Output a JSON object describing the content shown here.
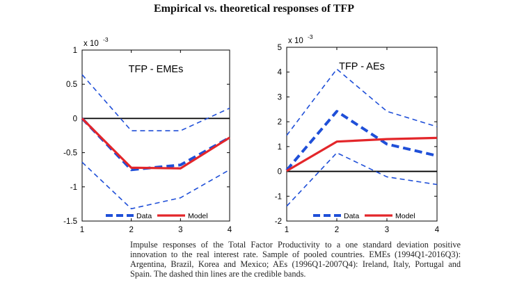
{
  "figure_title": "Empirical vs. theoretical responses of TFP",
  "caption": "Impulse responses of the Total Factor Productivity to a one standard deviation positive innovation to the real interest rate. Sample of pooled countries. EMEs (1994Q1-2016Q3): Argentina, Brazil, Korea and Mexico; AEs (1996Q1-2007Q4): Ireland, Italy, Portugal and Spain. The dashed thin lines are the credible bands.",
  "colors": {
    "data": "#1f4fd8",
    "model": "#e3262a",
    "zero": "#000000"
  },
  "chart_data": [
    {
      "type": "line",
      "title": "TFP - EMEs",
      "multiplier_label": "x 10",
      "multiplier_exp": "-3",
      "x": [
        1,
        2,
        3,
        4
      ],
      "xlim": [
        1,
        4
      ],
      "ylim": [
        -1.5,
        1
      ],
      "xticks": [
        "1",
        "2",
        "3",
        "4"
      ],
      "yticks": [
        {
          "v": 1,
          "label": "1"
        },
        {
          "v": 0.5,
          "label": "0.5"
        },
        {
          "v": 0,
          "label": "0"
        },
        {
          "v": -0.5,
          "label": "-0.5"
        },
        {
          "v": -1,
          "label": "-1"
        },
        {
          "v": -1.5,
          "label": "-1.5"
        }
      ],
      "series": [
        {
          "name": "Data",
          "style": "data",
          "values": [
            0,
            -0.75,
            -0.68,
            -0.28
          ]
        },
        {
          "name": "Model",
          "style": "model",
          "values": [
            0,
            -0.72,
            -0.73,
            -0.28
          ]
        },
        {
          "name": "Upper band",
          "style": "band",
          "values": [
            0.64,
            -0.18,
            -0.18,
            0.15
          ]
        },
        {
          "name": "Lower band",
          "style": "band",
          "values": [
            -0.64,
            -1.32,
            -1.16,
            -0.75
          ]
        }
      ],
      "legend": [
        "Data",
        "Model"
      ]
    },
    {
      "type": "line",
      "title": "TFP - AEs",
      "multiplier_label": "x 10",
      "multiplier_exp": "-3",
      "x": [
        1,
        2,
        3,
        4
      ],
      "xlim": [
        1,
        4
      ],
      "ylim": [
        -2,
        5
      ],
      "xticks": [
        "1",
        "2",
        "3",
        "4"
      ],
      "yticks": [
        {
          "v": 5,
          "label": "5"
        },
        {
          "v": 4,
          "label": "4"
        },
        {
          "v": 3,
          "label": "3"
        },
        {
          "v": 2,
          "label": "2"
        },
        {
          "v": 1,
          "label": "1"
        },
        {
          "v": 0,
          "label": "0"
        },
        {
          "v": -1,
          "label": "-1"
        },
        {
          "v": -2,
          "label": "-2"
        }
      ],
      "series": [
        {
          "name": "Data",
          "style": "data",
          "values": [
            0.05,
            2.42,
            1.1,
            0.63
          ]
        },
        {
          "name": "Model",
          "style": "model",
          "values": [
            0.02,
            1.2,
            1.3,
            1.35
          ]
        },
        {
          "name": "Upper band",
          "style": "band",
          "values": [
            1.45,
            4.12,
            2.42,
            1.8
          ]
        },
        {
          "name": "Lower band",
          "style": "band",
          "values": [
            -1.4,
            0.75,
            -0.22,
            -0.53
          ]
        }
      ],
      "legend": [
        "Data",
        "Model"
      ]
    }
  ]
}
